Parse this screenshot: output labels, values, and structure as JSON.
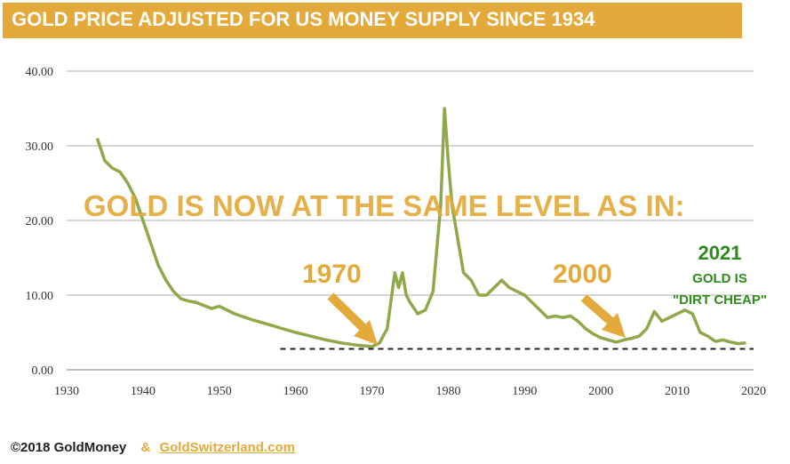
{
  "title": "GOLD PRICE ADJUSTED FOR US MONEY SUPPLY SINCE 1934",
  "footer": {
    "copyright": "©2018 GoldMoney",
    "ampersand": "&",
    "link": "GoldSwitzerland.com"
  },
  "colors": {
    "title_bg": "#e3a93a",
    "line": "#8fa84a",
    "accent": "#e3a93a",
    "green": "#2e8b1a"
  },
  "chart_data": {
    "type": "line",
    "title": "GOLD PRICE ADJUSTED FOR US MONEY SUPPLY SINCE 1934",
    "xlabel": "",
    "ylabel": "",
    "xlim": [
      1930,
      2020
    ],
    "ylim": [
      0,
      40
    ],
    "grid": true,
    "x_ticks": [
      "1930",
      "1940",
      "1950",
      "1960",
      "1970",
      "1980",
      "1990",
      "2000",
      "2010",
      "2020"
    ],
    "y_ticks": [
      "0.00",
      "10.00",
      "20.00",
      "30.00",
      "40.00"
    ],
    "series": [
      {
        "x": [
          1934,
          1935,
          1936,
          1937,
          1938,
          1939,
          1940,
          1941,
          1942,
          1943,
          1944,
          1945,
          1946,
          1947,
          1948,
          1949,
          1950,
          1952,
          1954,
          1956,
          1958,
          1960,
          1962,
          1964,
          1966,
          1968,
          1969,
          1970,
          1971,
          1972,
          1973,
          1973.5,
          1974,
          1974.5,
          1975,
          1976,
          1977,
          1978,
          1979,
          1979.5,
          1980,
          1980.5,
          1981,
          1982,
          1983,
          1984,
          1985,
          1986,
          1987,
          1988,
          1989,
          1990,
          1991,
          1992,
          1993,
          1994,
          1995,
          1996,
          1997,
          1998,
          1999,
          2000,
          2001,
          2002,
          2003,
          2004,
          2005,
          2006,
          2007,
          2008,
          2009,
          2010,
          2011,
          2012,
          2013,
          2014,
          2015,
          2016,
          2017,
          2018,
          2019
        ],
        "y": [
          31,
          28,
          27,
          26.5,
          25,
          23,
          20,
          17,
          14,
          12,
          10.5,
          9.5,
          9.2,
          9,
          8.6,
          8.2,
          8.5,
          7.5,
          6.8,
          6.2,
          5.6,
          5,
          4.5,
          4,
          3.6,
          3.3,
          3.2,
          3.1,
          3.6,
          5.5,
          13,
          11,
          13,
          10,
          9,
          7.5,
          8,
          10.5,
          22,
          35,
          28,
          22,
          19,
          13,
          12,
          10,
          10,
          11,
          12,
          11,
          10.5,
          10,
          9,
          8,
          7,
          7.2,
          7,
          7.2,
          6.5,
          5.5,
          4.8,
          4.3,
          4,
          3.7,
          4,
          4.2,
          4.5,
          5.5,
          7.8,
          6.5,
          7,
          7.5,
          8,
          7.5,
          5,
          4.5,
          3.8,
          4,
          3.7,
          3.5,
          3.6
        ]
      }
    ],
    "annotations": {
      "headline": "GOLD IS NOW AT THE SAME LEVEL AS IN:",
      "label_1970": "1970",
      "label_2000": "2000",
      "label_2021": "2021",
      "label_gold_is": "GOLD IS",
      "label_dirt_cheap": "\"DIRT CHEAP\"",
      "dashed_level": 2.8
    }
  }
}
